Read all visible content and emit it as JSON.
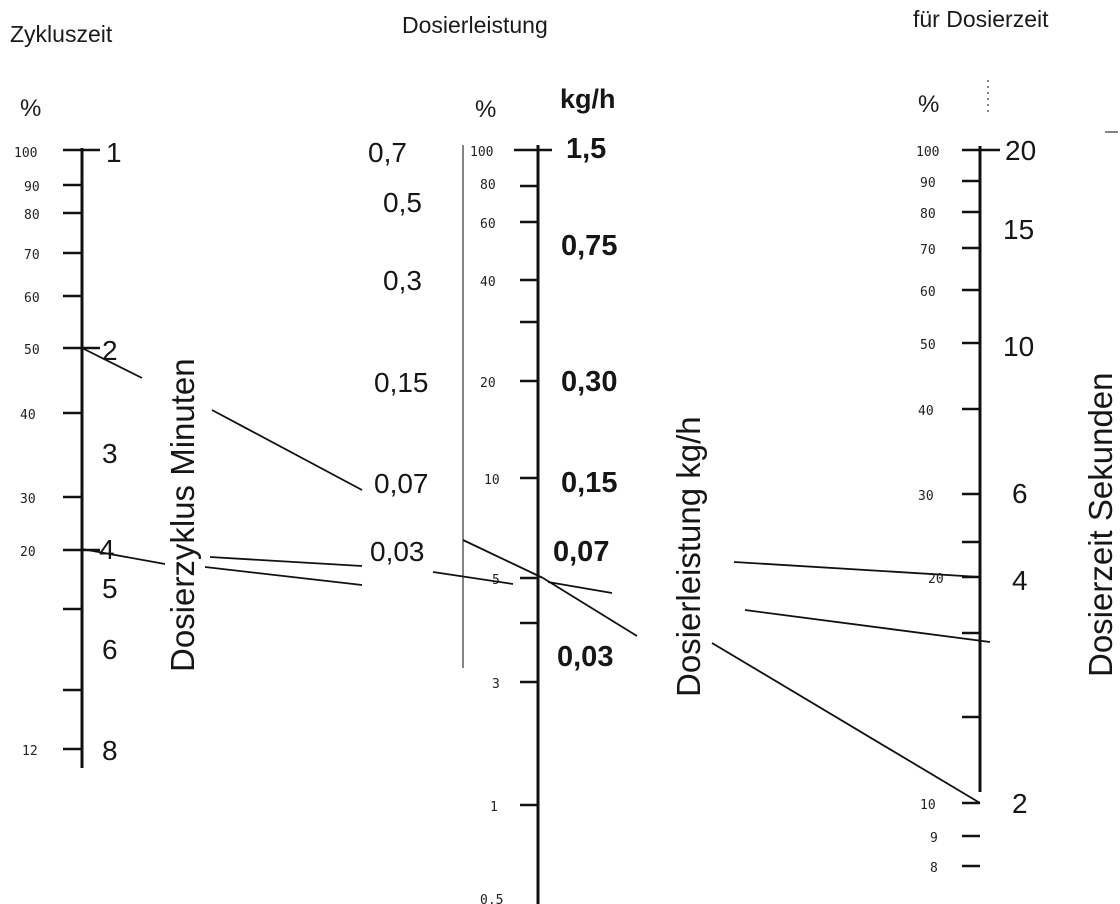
{
  "headers": {
    "cycle": "Zykluszeit",
    "rate": "Dosierleistung",
    "dose": "für Dosierzeit"
  },
  "unit_labels": {
    "cycle_pct": "%",
    "rate_pct": "%",
    "rate_kgh": "kg/h",
    "dose_pct": "%"
  },
  "vertical_titles": {
    "cycle": "Dosierzyklus  Minuten",
    "rate": "Dosierleistung  kg/h",
    "dose": "Dosierzeit  Sekunden"
  },
  "cycle_axis": {
    "pct": [
      "100",
      "90",
      "80",
      "70",
      "60",
      "50",
      "40",
      "30",
      "20",
      "12"
    ],
    "minutes": [
      "1",
      "2",
      "3",
      "4",
      "5",
      "6",
      "8"
    ]
  },
  "rate_axis": {
    "side_values": [
      "0,7",
      "0,5",
      "0,3",
      "0,15",
      "0,07",
      "0,03"
    ],
    "pct": [
      "100",
      "80",
      "60",
      "40",
      "20",
      "10",
      "5",
      "3",
      "1",
      "0,5"
    ],
    "kgh": [
      "1,5",
      "0,75",
      "0,30",
      "0,15",
      "0,07",
      "0,03"
    ]
  },
  "dose_axis": {
    "pct": [
      "100",
      "90",
      "80",
      "70",
      "60",
      "50",
      "40",
      "30",
      "20",
      "10",
      "9",
      "8"
    ],
    "seconds": [
      "20",
      "15",
      "10",
      "6",
      "4",
      "2"
    ]
  }
}
